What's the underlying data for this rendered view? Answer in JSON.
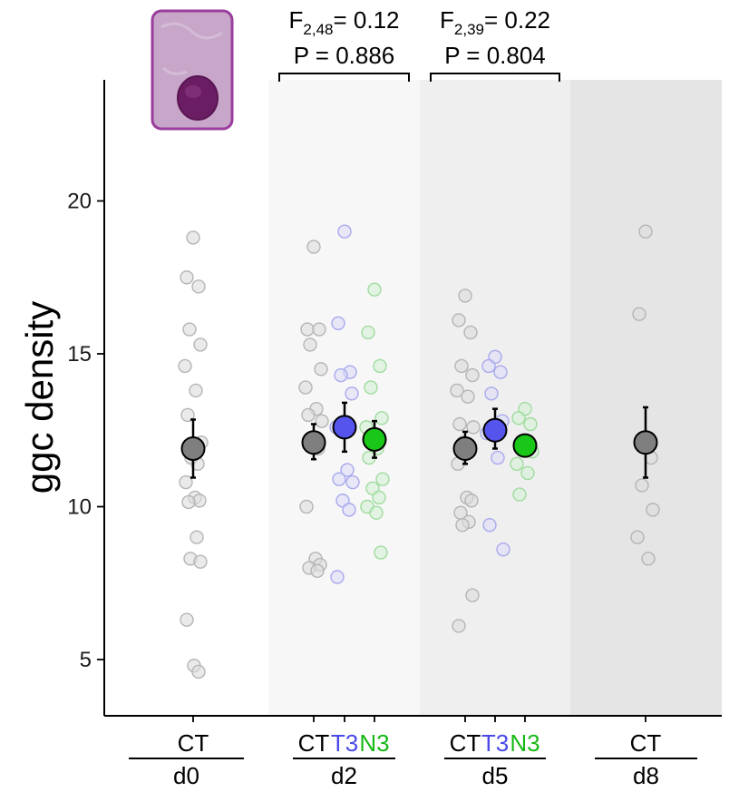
{
  "chart_data": {
    "type": "scatter",
    "ylabel": "ggc density",
    "yticks": [
      5,
      10,
      15,
      20
    ],
    "ylim": [
      3,
      25.5
    ],
    "grid": false,
    "background_bands": [
      {
        "group": "d2",
        "color": "#f7f7f7"
      },
      {
        "group": "d5",
        "color": "#efefef"
      },
      {
        "group": "d8",
        "color": "#e5e5e5"
      }
    ],
    "groups": [
      {
        "label": "d0",
        "conditions": [
          "CT"
        ]
      },
      {
        "label": "d2",
        "conditions": [
          "CT",
          "T3",
          "N3"
        ],
        "stat": {
          "label": "F",
          "sub": "2,48",
          "value": "= 0.12",
          "p": "P = 0.886"
        }
      },
      {
        "label": "d5",
        "conditions": [
          "CT",
          "T3",
          "N3"
        ],
        "stat": {
          "label": "F",
          "sub": "2,39",
          "value": "= 0.22",
          "p": "P = 0.804"
        }
      },
      {
        "label": "d8",
        "conditions": [
          "CT"
        ]
      }
    ],
    "condition_colors": {
      "CT": "#000000",
      "T3": "#4a4ae8",
      "N3": "#16b916"
    },
    "mean_colors": {
      "CT": "#7f7f7f",
      "T3": "#5555ee",
      "N3": "#18c718"
    },
    "series": [
      {
        "group": "d0",
        "condition": "CT",
        "mean": 11.9,
        "err": [
          10.95,
          12.85
        ],
        "points": [
          18.8,
          17.5,
          17.2,
          15.8,
          15.3,
          14.6,
          13.8,
          13.0,
          12.1,
          11.6,
          11.4,
          10.8,
          10.3,
          10.2,
          10.15,
          9.0,
          8.3,
          8.2,
          6.3,
          4.8,
          4.6
        ]
      },
      {
        "group": "d2",
        "condition": "CT",
        "mean": 12.1,
        "err": [
          11.55,
          12.7
        ],
        "points": [
          18.5,
          15.8,
          15.8,
          15.3,
          14.5,
          13.9,
          13.2,
          13.0,
          12.8,
          12.2,
          11.9,
          10.0,
          8.3,
          8.1,
          8.0,
          7.9
        ]
      },
      {
        "group": "d2",
        "condition": "T3",
        "mean": 12.6,
        "err": [
          11.8,
          13.4
        ],
        "points": [
          19.0,
          16.0,
          14.4,
          14.3,
          13.7,
          12.6,
          11.2,
          10.9,
          10.8,
          10.2,
          9.9,
          7.7
        ]
      },
      {
        "group": "d2",
        "condition": "N3",
        "mean": 12.2,
        "err": [
          11.6,
          12.8
        ],
        "points": [
          17.1,
          15.7,
          14.6,
          13.9,
          12.9,
          12.6,
          11.9,
          11.6,
          10.9,
          10.6,
          10.3,
          10.0,
          9.8,
          8.5
        ]
      },
      {
        "group": "d5",
        "condition": "CT",
        "mean": 11.9,
        "err": [
          11.4,
          12.45
        ],
        "points": [
          16.9,
          16.1,
          15.7,
          14.6,
          14.3,
          13.8,
          13.6,
          12.7,
          12.6,
          12.1,
          11.8,
          11.4,
          10.3,
          10.2,
          9.8,
          9.5,
          9.4,
          7.1,
          6.1
        ]
      },
      {
        "group": "d5",
        "condition": "T3",
        "mean": 12.5,
        "err": [
          11.9,
          13.2
        ],
        "points": [
          14.9,
          14.6,
          14.4,
          13.7,
          12.8,
          12.4,
          11.6,
          9.4,
          8.6
        ]
      },
      {
        "group": "d5",
        "condition": "N3",
        "mean": 12.0,
        "err": [
          11.8,
          12.25
        ],
        "points": [
          13.2,
          12.9,
          12.7,
          12.0,
          11.8,
          11.4,
          11.1,
          10.4
        ]
      },
      {
        "group": "d8",
        "condition": "CT",
        "mean": 12.1,
        "err": [
          10.95,
          13.25
        ],
        "points": [
          19.0,
          16.3,
          11.6,
          10.7,
          9.9,
          9.0,
          8.3
        ]
      }
    ]
  }
}
